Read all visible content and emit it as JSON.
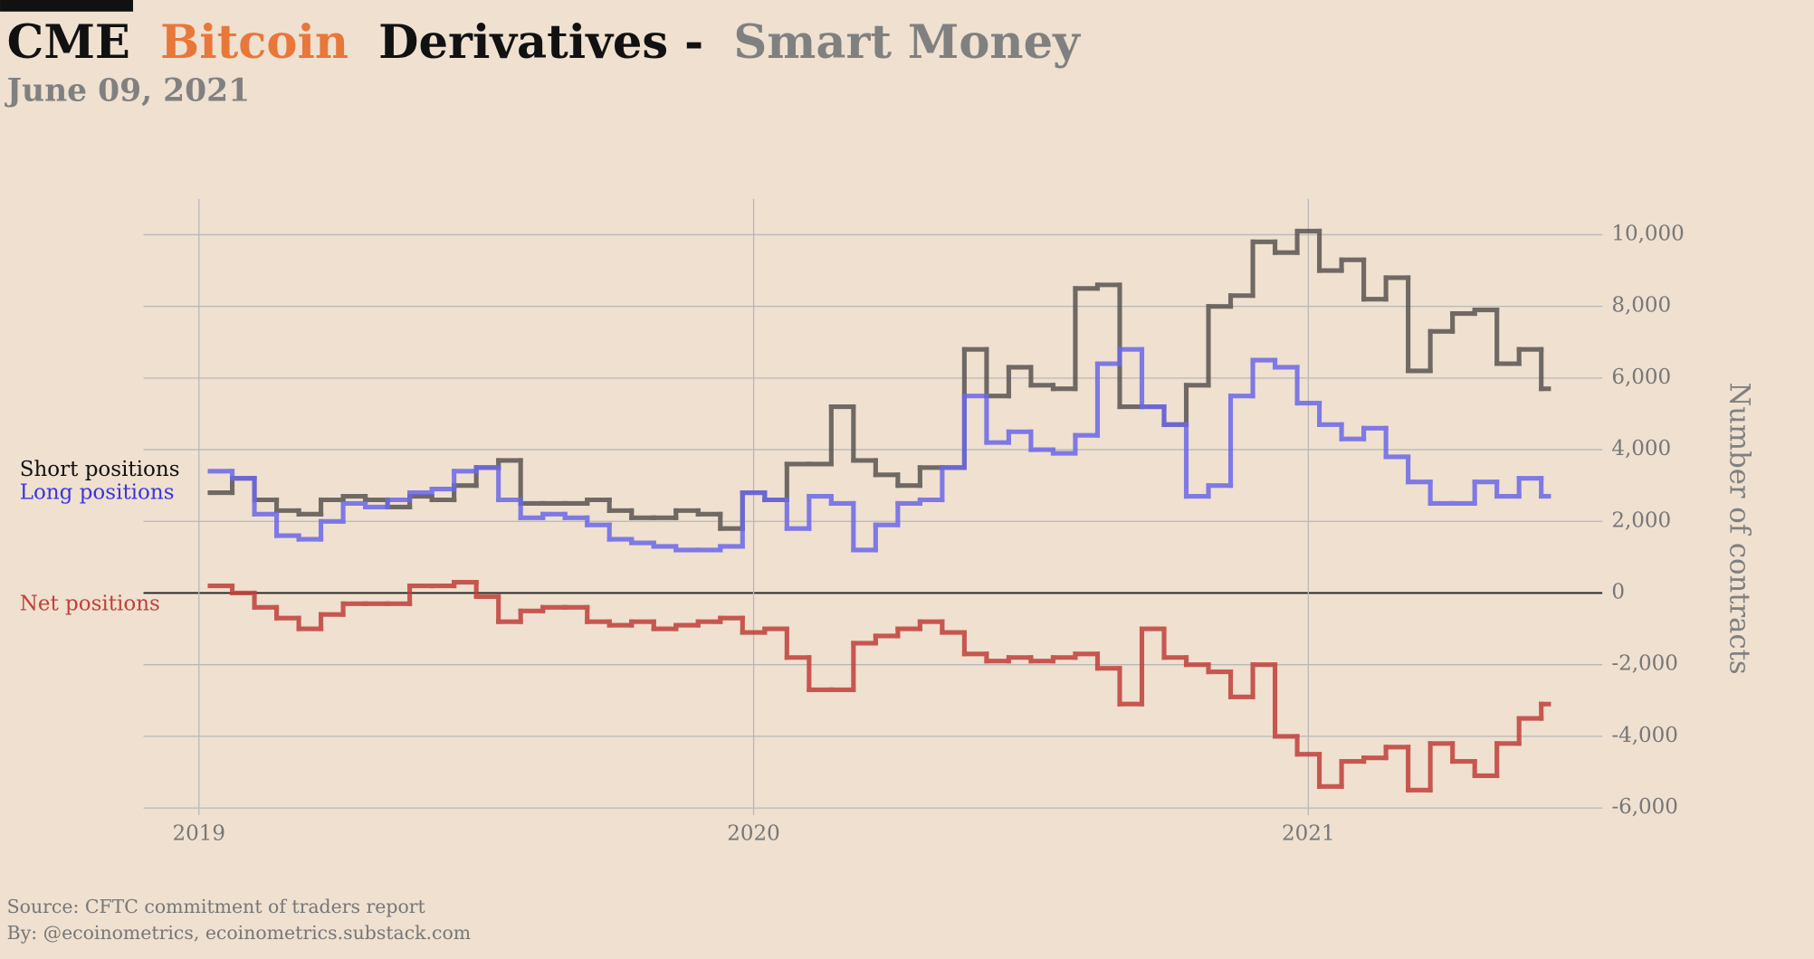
{
  "chart_data": {
    "type": "line",
    "step": true,
    "title_parts": [
      "CME",
      "Bitcoin",
      "Derivatives -",
      "Smart Money"
    ],
    "subtitle": "June 09, 2021",
    "y_axis_label": "Number of contracts",
    "source": "Source: CFTC commitment of traders report",
    "credit": "By: @ecoinometrics, ecoinometrics.substack.com",
    "x": [
      2019.02,
      2019.06,
      2019.1,
      2019.14,
      2019.18,
      2019.22,
      2019.26,
      2019.3,
      2019.34,
      2019.38,
      2019.42,
      2019.46,
      2019.5,
      2019.54,
      2019.58,
      2019.62,
      2019.66,
      2019.7,
      2019.74,
      2019.78,
      2019.82,
      2019.86,
      2019.9,
      2019.94,
      2019.98,
      2020.02,
      2020.06,
      2020.1,
      2020.14,
      2020.18,
      2020.22,
      2020.26,
      2020.3,
      2020.34,
      2020.38,
      2020.42,
      2020.46,
      2020.5,
      2020.54,
      2020.58,
      2020.62,
      2020.66,
      2020.7,
      2020.74,
      2020.78,
      2020.82,
      2020.86,
      2020.9,
      2020.94,
      2020.98,
      2021.02,
      2021.06,
      2021.1,
      2021.14,
      2021.18,
      2021.22,
      2021.26,
      2021.3,
      2021.34,
      2021.38,
      2021.42
    ],
    "series": [
      {
        "name": "Short positions",
        "color": "#5a5550",
        "values": [
          2800,
          3200,
          2600,
          2300,
          2200,
          2600,
          2700,
          2600,
          2400,
          2700,
          2600,
          3000,
          3500,
          3700,
          2500,
          2500,
          2500,
          2600,
          2300,
          2100,
          2100,
          2300,
          2200,
          1800,
          2800,
          2600,
          3600,
          3600,
          5200,
          3700,
          3300,
          3000,
          3500,
          3500,
          6800,
          5500,
          6300,
          5800,
          5700,
          8500,
          8600,
          5200,
          5200,
          4700,
          5800,
          8000,
          8300,
          9800,
          9500,
          10100,
          9000,
          9300,
          8200,
          8800,
          6200,
          7300,
          7800,
          7900,
          6400,
          6800,
          5700
        ]
      },
      {
        "name": "Long positions",
        "color": "#6b68e8",
        "values": [
          3400,
          3200,
          2200,
          1600,
          1500,
          2000,
          2500,
          2400,
          2600,
          2800,
          2900,
          3400,
          3500,
          2600,
          2100,
          2200,
          2100,
          1900,
          1500,
          1400,
          1300,
          1200,
          1200,
          1300,
          2800,
          2600,
          1800,
          2700,
          2500,
          1200,
          1900,
          2500,
          2600,
          3500,
          5500,
          4200,
          4500,
          4000,
          3900,
          4400,
          6400,
          6800,
          5200,
          4700,
          2700,
          3000,
          5500,
          6500,
          6300,
          5300,
          4700,
          4300,
          4600,
          3800,
          3100,
          2500,
          2500,
          3100,
          2700,
          3200,
          2700
        ]
      },
      {
        "name": "Net positions",
        "color": "#c0403a",
        "values": [
          200,
          0,
          -400,
          -700,
          -1000,
          -600,
          -300,
          -300,
          -300,
          200,
          200,
          300,
          -100,
          -800,
          -500,
          -400,
          -400,
          -800,
          -900,
          -800,
          -1000,
          -900,
          -800,
          -700,
          -1100,
          -1000,
          -1800,
          -2700,
          -2700,
          -1400,
          -1200,
          -1000,
          -800,
          -1100,
          -1700,
          -1900,
          -1800,
          -1900,
          -1800,
          -1700,
          -2100,
          -3100,
          -1000,
          -1800,
          -2000,
          -2200,
          -2900,
          -2000,
          -4000,
          -4500,
          -5400,
          -4700,
          -4600,
          -4300,
          -5500,
          -4200,
          -4700,
          -5100,
          -4200,
          -3500,
          -3100
        ]
      }
    ],
    "xlim": [
      2018.9,
      2021.53
    ],
    "xticks": [
      2019,
      2020,
      2021
    ],
    "ylim": [
      -6200,
      11000
    ],
    "yticks": [
      {
        "value": -6000,
        "label": "-6,000"
      },
      {
        "value": -4000,
        "label": "-4,000"
      },
      {
        "value": -2000,
        "label": "-2,000"
      },
      0,
      {
        "value": 2000,
        "label": "2,000"
      },
      {
        "value": 4000,
        "label": "4,000"
      },
      {
        "value": 6000,
        "label": "6,000"
      },
      {
        "value": 8000,
        "label": "8,000"
      },
      {
        "value": 10000,
        "label": "10,000"
      }
    ],
    "grid": true
  }
}
